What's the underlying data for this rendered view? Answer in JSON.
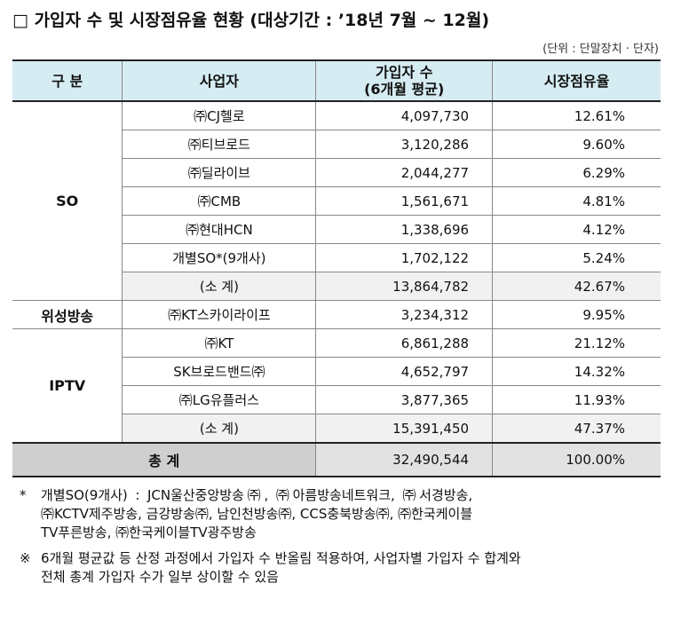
{
  "header": {
    "title": "□ 가입자 수 및 시장점유율 현황 (대상기간 : ’18년 7월 ~ 12월)",
    "unit": "(단위 : 단말장치 · 단자)"
  },
  "table": {
    "columns": [
      "구 분",
      "사업자",
      [
        "가입자 수",
        "(6개월 평균)"
      ],
      "시장점유율"
    ],
    "groups": [
      {
        "label": "SO",
        "rows": [
          [
            "㈜CJ헬로",
            "4,097,730",
            "12.61%"
          ],
          [
            "㈜티브로드",
            "3,120,286",
            "9.60%"
          ],
          [
            "㈜딜라이브",
            "2,044,277",
            "6.29%"
          ],
          [
            "㈜CMB",
            "1,561,671",
            "4.81%"
          ],
          [
            "㈜현대HCN",
            "1,338,696",
            "4.12%"
          ],
          [
            "개별SO*(9개사)",
            "1,702,122",
            "5.24%"
          ]
        ],
        "subtotal": [
          "(소 계)",
          "13,864,782",
          "42.67%"
        ]
      },
      {
        "label": "위성방송",
        "rows": [
          [
            "㈜KT스카이라이프",
            "3,234,312",
            "9.95%"
          ]
        ]
      },
      {
        "label": "IPTV",
        "rows": [
          [
            "㈜KT",
            "6,861,288",
            "21.12%"
          ],
          [
            "SK브로드밴드㈜",
            "4,652,797",
            "14.32%"
          ],
          [
            "㈜LG유플러스",
            "3,877,365",
            "11.93%"
          ]
        ],
        "subtotal": [
          "(소 계)",
          "15,391,450",
          "47.37%"
        ]
      }
    ],
    "total": [
      "총 계",
      "32,490,544",
      "100.00%"
    ]
  },
  "notes": [
    {
      "marker": "*",
      "lines": [
        "개별SO(9개사) : JCN울산중앙방송㈜, ㈜아름방송네트워크, ㈜서경방송,",
        "㈜KCTV제주방송, 금강방송㈜, 남인천방송㈜, CCS충북방송㈜, ㈜한국케이블",
        "TV푸른방송, ㈜한국케이블TV광주방송"
      ]
    },
    {
      "marker": "※",
      "lines": [
        "6개월 평균값 등 산정 과정에서 가입자 수 반올림 적용하여, 사업자별 가입자 수 합계와",
        "전체 총계 가입자 수가 일부 상이할 수 있음"
      ]
    }
  ]
}
